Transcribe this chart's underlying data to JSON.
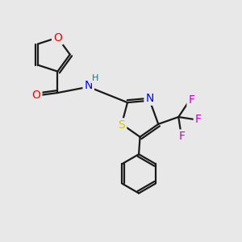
{
  "bg_color": "#e8e8e8",
  "bond_color": "#1a1a1a",
  "line_width": 1.6,
  "atom_colors": {
    "O": "#ff0000",
    "N": "#0000ff",
    "H": "#008080",
    "S": "#cccc00",
    "F": "#cc00cc",
    "C": "#1a1a1a"
  },
  "font_size_atom": 10,
  "fig_size": [
    3.0,
    3.0
  ],
  "dpi": 100
}
